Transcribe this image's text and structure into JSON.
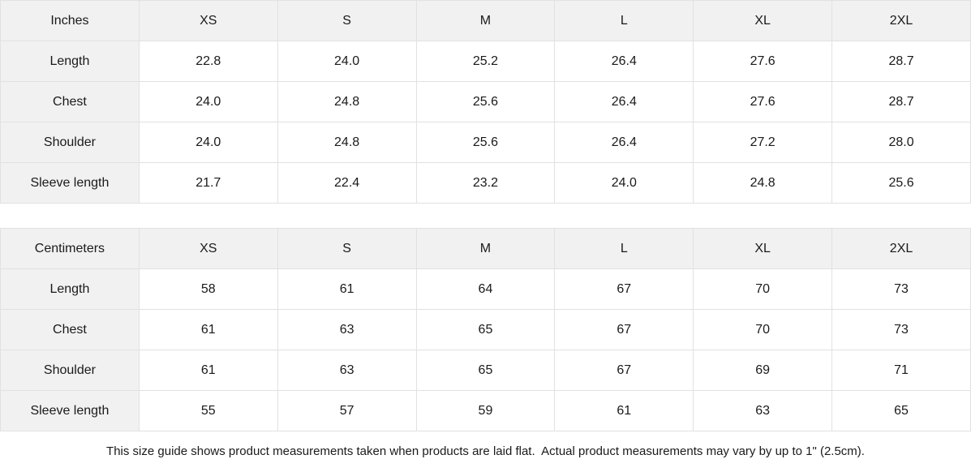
{
  "colors": {
    "background": "#ffffff",
    "header_bg": "#f1f1f1",
    "label_column_bg": "#f1f1f1",
    "border": "#e1e1e1",
    "text": "#1a1a1a"
  },
  "chart_data": [
    {
      "type": "table",
      "title": "Inches",
      "columns": [
        "Inches",
        "XS",
        "S",
        "M",
        "L",
        "XL",
        "2XL"
      ],
      "rows": [
        [
          "Length",
          "22.8",
          "24.0",
          "25.2",
          "26.4",
          "27.6",
          "28.7"
        ],
        [
          "Chest",
          "24.0",
          "24.8",
          "25.6",
          "26.4",
          "27.6",
          "28.7"
        ],
        [
          "Shoulder",
          "24.0",
          "24.8",
          "25.6",
          "26.4",
          "27.2",
          "28.0"
        ],
        [
          "Sleeve length",
          "21.7",
          "22.4",
          "23.2",
          "24.0",
          "24.8",
          "25.6"
        ]
      ]
    },
    {
      "type": "table",
      "title": "Centimeters",
      "columns": [
        "Centimeters",
        "XS",
        "S",
        "M",
        "L",
        "XL",
        "2XL"
      ],
      "rows": [
        [
          "Length",
          "58",
          "61",
          "64",
          "67",
          "70",
          "73"
        ],
        [
          "Chest",
          "61",
          "63",
          "65",
          "67",
          "70",
          "73"
        ],
        [
          "Shoulder",
          "61",
          "63",
          "65",
          "67",
          "69",
          "71"
        ],
        [
          "Sleeve length",
          "55",
          "57",
          "59",
          "61",
          "63",
          "65"
        ]
      ]
    }
  ],
  "footnote": "This size guide shows product measurements taken when products are laid flat.  Actual product measurements may vary by up to 1\" (2.5cm)."
}
